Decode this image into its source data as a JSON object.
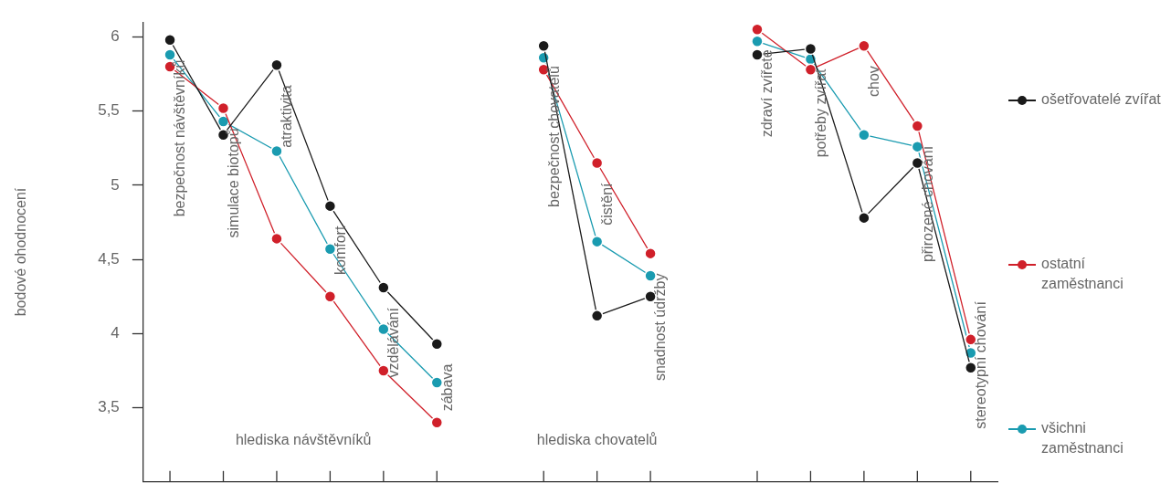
{
  "chart_data": {
    "type": "line",
    "ylabel": "bodové ohodnocení",
    "categories": [
      "bezpečnost návštěvníků",
      "simulace biotopů",
      "atraktivita",
      "komfort",
      "vzdělávání",
      "zábava",
      null,
      "bezpečnost chovatelů",
      "čistění",
      "snadnost údržby",
      null,
      "zdraví zvířete",
      "potřeby zvířat",
      "chov",
      "přirozené chování",
      "stereotypní chování"
    ],
    "series": [
      {
        "name": "ošetřovatelé zvířat",
        "color": "#1a1a1a",
        "values": [
          5.98,
          5.34,
          5.81,
          4.86,
          4.31,
          3.93,
          null,
          5.94,
          4.12,
          4.25,
          null,
          5.88,
          5.92,
          4.78,
          5.15,
          3.77
        ]
      },
      {
        "name": "ostatní zaměstnanci",
        "color": "#d0202a",
        "values": [
          5.8,
          5.52,
          4.64,
          4.25,
          3.75,
          3.4,
          null,
          5.78,
          5.15,
          4.54,
          null,
          6.05,
          5.78,
          5.94,
          5.4,
          3.96
        ]
      },
      {
        "name": "všichni zaměstnanci",
        "color": "#1a9bb0",
        "values": [
          5.88,
          5.43,
          5.23,
          4.57,
          4.03,
          3.67,
          null,
          5.86,
          4.62,
          4.39,
          null,
          5.97,
          5.85,
          5.34,
          5.26,
          3.87
        ]
      }
    ],
    "ylim": [
      3,
      6.1
    ],
    "yticks": [
      {
        "value": 3.5,
        "label": "3,5"
      },
      {
        "value": 4,
        "label": "4"
      },
      {
        "value": 4.5,
        "label": "4,5"
      },
      {
        "value": 5,
        "label": "5"
      },
      {
        "value": 5.5,
        "label": "5,5"
      },
      {
        "value": 6,
        "label": "6"
      }
    ],
    "annotations": [
      "hlediska návštěvníků",
      "hlediska chovatelů"
    ],
    "grid": false,
    "legend": "right",
    "marker": "circle",
    "line_style": "solid"
  }
}
